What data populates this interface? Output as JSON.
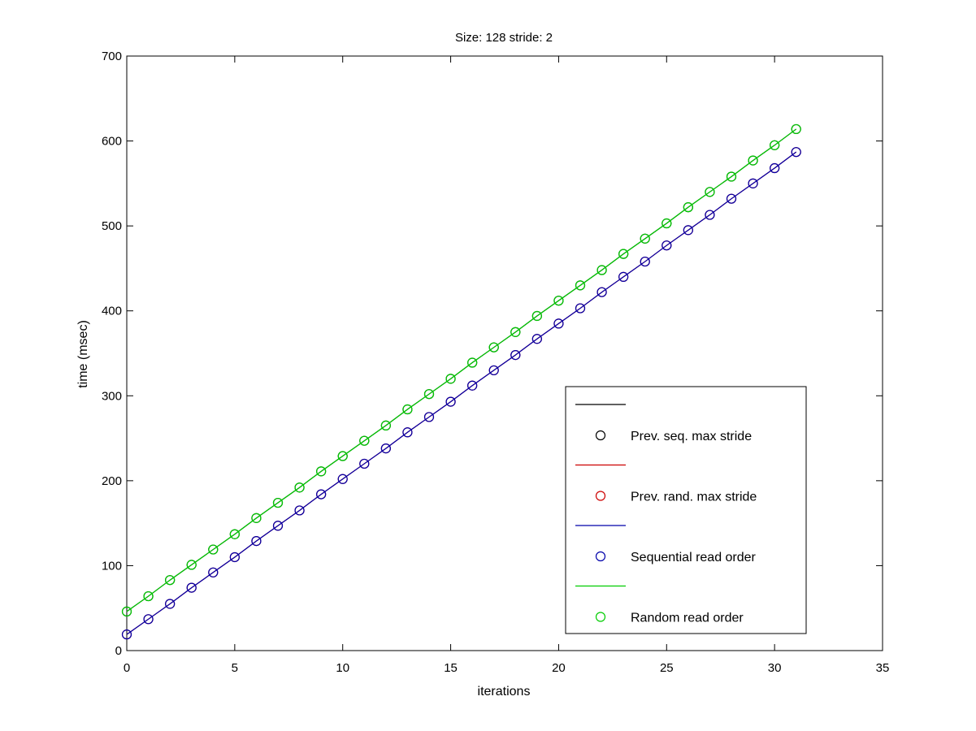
{
  "chart_data": {
    "type": "line",
    "title": "Size: 128 stride: 2",
    "xlabel": "iterations",
    "ylabel": "time (msec)",
    "xlim": [
      0,
      35
    ],
    "ylim": [
      0,
      700
    ],
    "xticks": [
      0,
      5,
      10,
      15,
      20,
      25,
      30,
      35
    ],
    "yticks": [
      0,
      100,
      200,
      300,
      400,
      500,
      600,
      700
    ],
    "grid": false,
    "legend_position": "bottom-right",
    "x": [
      0,
      1,
      2,
      3,
      4,
      5,
      6,
      7,
      8,
      9,
      10,
      11,
      12,
      13,
      14,
      15,
      16,
      17,
      18,
      19,
      20,
      21,
      22,
      23,
      24,
      25,
      26,
      27,
      28,
      29,
      30,
      31
    ],
    "series": [
      {
        "name": "Prev. seq. max stride",
        "color": "#000000",
        "marker": "circle",
        "values": [
          46,
          64,
          83,
          101,
          119,
          137,
          156,
          174,
          192,
          211,
          229,
          247,
          265,
          284,
          302,
          320,
          339,
          357,
          375,
          394,
          412,
          430,
          448,
          467,
          485,
          503,
          522,
          540,
          558,
          577,
          595,
          614
        ]
      },
      {
        "name": "Prev. rand. max stride",
        "color": "#cc0000",
        "marker": "circle",
        "values": [
          19,
          37,
          55,
          74,
          92,
          110,
          129,
          147,
          165,
          184,
          202,
          220,
          238,
          257,
          275,
          293,
          312,
          330,
          348,
          367,
          385,
          403,
          422,
          440,
          458,
          477,
          495,
          513,
          532,
          550,
          568,
          587
        ]
      },
      {
        "name": "Sequential read order",
        "color": "#0000aa",
        "marker": "circle",
        "values": [
          19,
          37,
          55,
          74,
          92,
          110,
          129,
          147,
          165,
          184,
          202,
          220,
          238,
          257,
          275,
          293,
          312,
          330,
          348,
          367,
          385,
          403,
          422,
          440,
          458,
          477,
          495,
          513,
          532,
          550,
          568,
          587
        ]
      },
      {
        "name": "Random read order",
        "color": "#00cc00",
        "marker": "circle",
        "values": [
          46,
          64,
          83,
          101,
          119,
          137,
          156,
          174,
          192,
          211,
          229,
          247,
          265,
          284,
          302,
          320,
          339,
          357,
          375,
          394,
          412,
          430,
          448,
          467,
          485,
          503,
          522,
          540,
          558,
          577,
          595,
          614
        ]
      }
    ]
  }
}
